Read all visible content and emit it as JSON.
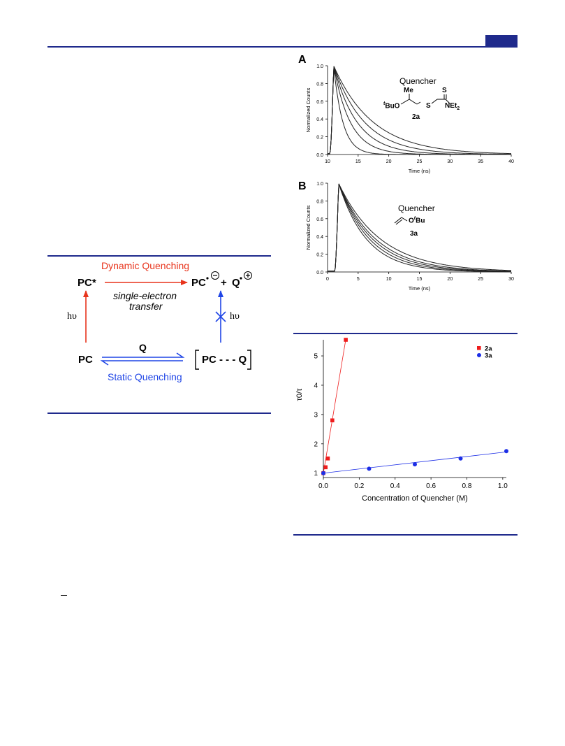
{
  "scheme": {
    "dynamic_label": "Dynamic Quenching",
    "static_label": "Static Quenching",
    "pc_star": "PC*",
    "pc": "PC",
    "pc_radical": "PC",
    "plus": "+",
    "q_radical": "Q",
    "set_line1": "single-electron",
    "set_line2": "transfer",
    "hv": "hυ",
    "q_arrow": "Q",
    "complex": "PC - - - Q",
    "colors": {
      "dynamic": "#e8341c",
      "static": "#1f45e6"
    }
  },
  "panels": {
    "a_letter": "A",
    "b_letter": "B",
    "a_quencher_label": "Quencher",
    "a_structure": {
      "me": "Me",
      "s_top": "S",
      "tbuo": "BuO",
      "t": "t",
      "s": "S",
      "net": "NEt",
      "sub2": "2",
      "id": "2a"
    },
    "b_quencher_label": "Quencher",
    "b_structure": {
      "o": "O",
      "t": "t",
      "bu": "Bu",
      "id": "3a"
    }
  },
  "chart_data": [
    {
      "type": "line",
      "panel": "A",
      "xlabel": "Time (ns)",
      "ylabel": "Normalized Counts",
      "xlim": [
        10,
        40
      ],
      "ylim": [
        0,
        1.0
      ],
      "xticks": [
        10,
        15,
        20,
        25,
        30,
        35,
        40
      ],
      "yticks": [
        0.0,
        0.2,
        0.4,
        0.6,
        0.8,
        1.0
      ],
      "peak_time": 11,
      "lifetimes_ns": [
        1.5,
        2.7,
        3.8,
        5.0,
        6.4
      ]
    },
    {
      "type": "line",
      "panel": "B",
      "xlabel": "Time (ns)",
      "ylabel": "Normalized Counts",
      "xlim": [
        0,
        30
      ],
      "ylim": [
        0,
        1.0
      ],
      "xticks": [
        0,
        5,
        10,
        15,
        20,
        25,
        30
      ],
      "yticks": [
        0.0,
        0.2,
        0.4,
        0.6,
        0.8,
        1.0
      ],
      "peak_time": 1.8,
      "lifetimes_ns": [
        4.6,
        5.1,
        5.6,
        6.1,
        6.9
      ]
    },
    {
      "type": "scatter",
      "xlabel": "Concentration of Quencher (M)",
      "ylabel": "τ0/τ",
      "xlim": [
        0,
        1.02
      ],
      "ylim": [
        0.85,
        5.55
      ],
      "xticks": [
        0.0,
        0.2,
        0.4,
        0.6,
        0.8,
        1.0
      ],
      "yticks": [
        1,
        2,
        3,
        4,
        5
      ],
      "series": [
        {
          "name": "2a",
          "color": "#ee1c1c",
          "marker": "square",
          "x": [
            0,
            0.0125,
            0.025,
            0.05,
            0.125
          ],
          "y": [
            1.0,
            1.2,
            1.5,
            2.8,
            5.55
          ],
          "fit_slope": 36.5,
          "fit_intercept": 1.0
        },
        {
          "name": "3a",
          "color": "#1c2ee6",
          "marker": "circle",
          "x": [
            0,
            0.255,
            0.51,
            0.765,
            1.02
          ],
          "y": [
            1.0,
            1.15,
            1.3,
            1.5,
            1.75
          ],
          "fit_slope": 0.71,
          "fit_intercept": 1.0
        }
      ]
    }
  ]
}
